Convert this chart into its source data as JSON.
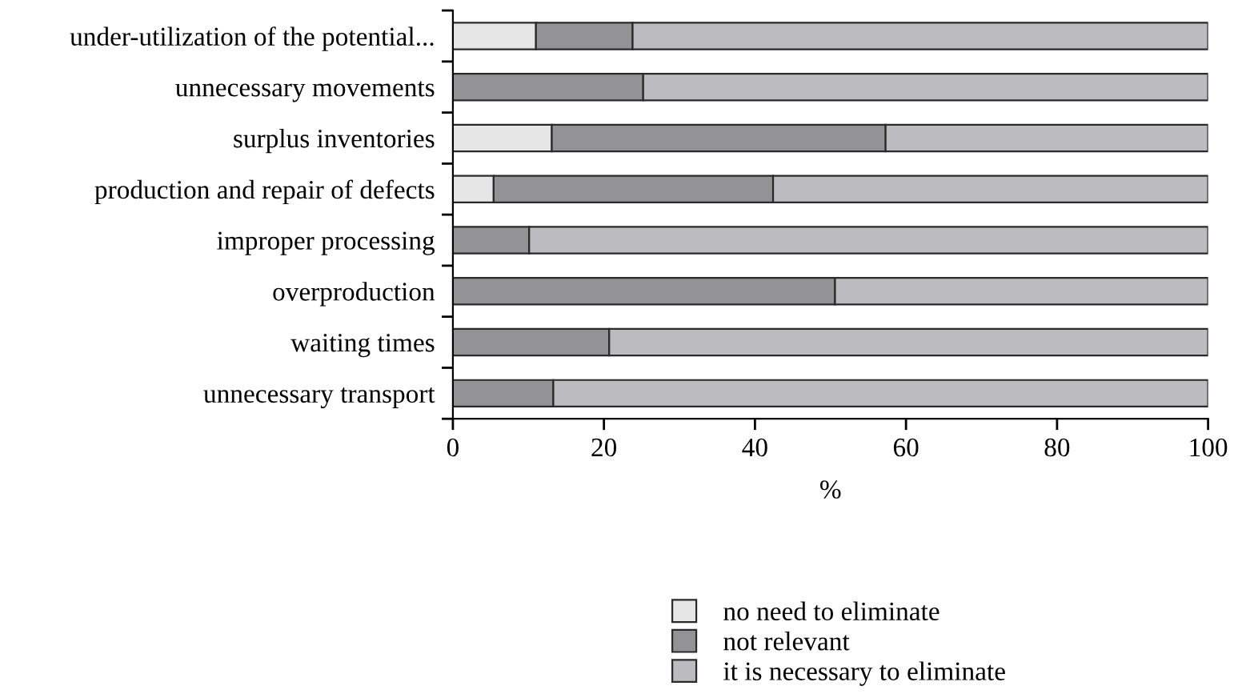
{
  "chart_data": {
    "type": "bar",
    "orientation": "horizontal",
    "stacked": true,
    "xlabel": "%",
    "categories": [
      "under-utilization of the potential...",
      "unnecessary movements",
      "surplus inventories",
      "production and repair of defects",
      "improper processing",
      "overproduction",
      "waiting times",
      "unnecessary transport"
    ],
    "series": [
      {
        "name": "no need to eliminate",
        "color": "#e6e6e6",
        "values": [
          11.0,
          0,
          13.1,
          5.4,
          0,
          0,
          0,
          0
        ]
      },
      {
        "name": "not relevant",
        "color": "#939396",
        "values": [
          12.8,
          25.2,
          44.2,
          37.0,
          10.1,
          50.6,
          20.7,
          13.3
        ]
      },
      {
        "name": "it is necessary to eliminate",
        "color": "#bcbcc0",
        "values": [
          76.2,
          74.8,
          42.7,
          57.6,
          89.9,
          49.4,
          79.3,
          86.7
        ]
      }
    ],
    "xlim": [
      0,
      100
    ],
    "xticks": [
      0,
      20,
      40,
      60,
      80,
      100
    ],
    "grid": false,
    "legend": "bottom"
  }
}
